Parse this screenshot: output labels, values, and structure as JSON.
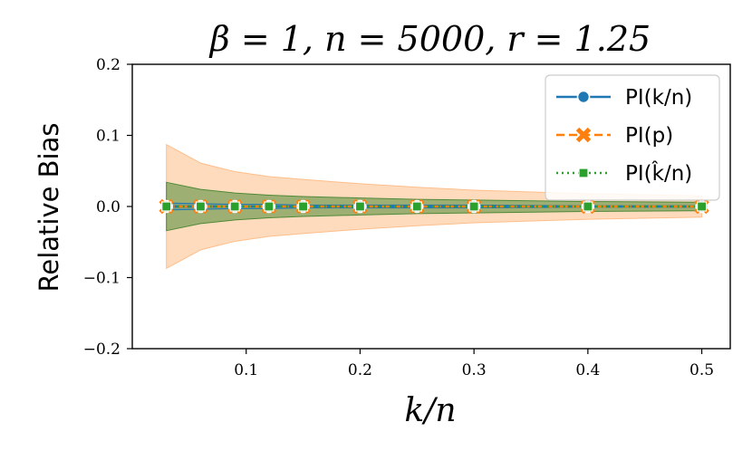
{
  "chart_data": {
    "type": "line",
    "title": "β = 1, n = 5000, r = 1.25",
    "xlabel": "k/n",
    "ylabel": "Relative Bias",
    "xlim": [
      0.0,
      0.525
    ],
    "ylim": [
      -0.2,
      0.2
    ],
    "x_ticks": [
      0.1,
      0.2,
      0.3,
      0.4,
      0.5
    ],
    "x_tick_labels": [
      "0.1",
      "0.2",
      "0.3",
      "0.4",
      "0.5"
    ],
    "y_ticks": [
      -0.2,
      -0.1,
      0.0,
      0.1,
      0.2
    ],
    "y_tick_labels": [
      "−0.2",
      "−0.1",
      "0.0",
      "0.1",
      "0.2"
    ],
    "x": [
      0.03,
      0.06,
      0.09,
      0.12,
      0.15,
      0.2,
      0.25,
      0.3,
      0.4,
      0.5
    ],
    "legend_position": "top-right",
    "series": [
      {
        "name": "PI(k/n)",
        "values": [
          0,
          0,
          0,
          0,
          0,
          0,
          0,
          0,
          0,
          0
        ],
        "band_upper": [
          0.005,
          0.004,
          0.003,
          0.003,
          0.002,
          0.002,
          0.002,
          0.002,
          0.001,
          0.001
        ],
        "band_lower": [
          -0.005,
          -0.004,
          -0.003,
          -0.003,
          -0.002,
          -0.002,
          -0.002,
          -0.002,
          -0.001,
          -0.001
        ],
        "color": "#1f77b4",
        "marker": "circle",
        "linestyle": "solid"
      },
      {
        "name": "PI(p)",
        "values": [
          0,
          0,
          0,
          0,
          0,
          0,
          0,
          0,
          0,
          0
        ],
        "band_upper": [
          0.087,
          0.061,
          0.049,
          0.042,
          0.038,
          0.032,
          0.027,
          0.023,
          0.018,
          0.015
        ],
        "band_lower": [
          -0.087,
          -0.061,
          -0.049,
          -0.042,
          -0.038,
          -0.032,
          -0.027,
          -0.023,
          -0.018,
          -0.015
        ],
        "color": "#ff7f0e",
        "marker": "x",
        "linestyle": "dashed"
      },
      {
        "name": "PI(k̂/n)",
        "values": [
          0,
          0,
          0,
          0,
          0,
          0,
          0,
          0,
          0,
          0
        ],
        "band_upper": [
          0.034,
          0.024,
          0.019,
          0.016,
          0.014,
          0.012,
          0.01,
          0.009,
          0.007,
          0.006
        ],
        "band_lower": [
          -0.034,
          -0.024,
          -0.019,
          -0.016,
          -0.014,
          -0.012,
          -0.01,
          -0.009,
          -0.007,
          -0.006
        ],
        "color": "#2ca02c",
        "marker": "square",
        "linestyle": "dotted"
      }
    ]
  }
}
